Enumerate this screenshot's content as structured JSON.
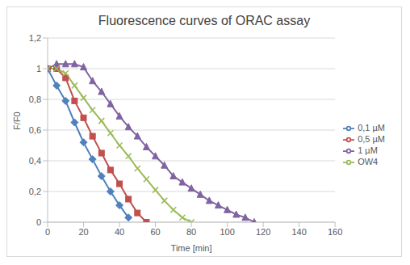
{
  "chart_data": {
    "type": "line",
    "title": "Fluorescence curves of ORAC assay",
    "x_label": "Time [min]",
    "y_label": "F/F0",
    "x": [
      0,
      5,
      10,
      15,
      20,
      25,
      30,
      35,
      40,
      45,
      50,
      55,
      60,
      65,
      70,
      75,
      80,
      85,
      90,
      95,
      100,
      105,
      110,
      115
    ],
    "series": [
      {
        "name": "0,1 µM",
        "color": "#4f81bd",
        "marker": "diamond",
        "values": [
          1,
          0.89,
          0.79,
          0.65,
          0.52,
          0.41,
          0.3,
          0.2,
          0.11,
          0.03,
          null,
          null,
          null,
          null,
          null,
          null,
          null,
          null,
          null,
          null,
          null,
          null,
          null,
          null
        ]
      },
      {
        "name": "0,5 µM",
        "color": "#c0504d",
        "marker": "square",
        "values": [
          1,
          1.0,
          0.94,
          0.79,
          0.68,
          0.56,
          0.45,
          0.34,
          0.25,
          0.15,
          0.06,
          0.0,
          null,
          null,
          null,
          null,
          null,
          null,
          null,
          null,
          null,
          null,
          null,
          null
        ]
      },
      {
        "name": "1 µM",
        "color": "#8064a2",
        "marker": "triangle",
        "values": [
          1,
          1.03,
          1.03,
          1.03,
          1.01,
          0.92,
          0.85,
          0.77,
          0.69,
          0.62,
          0.56,
          0.49,
          0.43,
          0.37,
          0.3,
          0.26,
          0.22,
          0.18,
          0.14,
          0.11,
          0.08,
          0.05,
          0.03,
          0.0
        ]
      },
      {
        "name": "OW4",
        "color": "#9bbb59",
        "marker": "x",
        "values": [
          1,
          1.0,
          0.97,
          0.89,
          0.81,
          0.73,
          0.66,
          0.58,
          0.5,
          0.43,
          0.35,
          0.28,
          0.21,
          0.14,
          0.08,
          0.03,
          0.0,
          null,
          null,
          null,
          null,
          null,
          null,
          null
        ]
      }
    ],
    "xlim": [
      0,
      160
    ],
    "xticks": [
      0,
      20,
      40,
      60,
      80,
      100,
      120,
      140,
      160
    ],
    "ylim": [
      0,
      1.2
    ],
    "yticks": [
      0,
      {
        "value": 0.2,
        "label": "0,2"
      },
      {
        "value": 0.4,
        "label": "0,4"
      },
      {
        "value": 0.6,
        "label": "0,6"
      },
      {
        "value": 0.8,
        "label": "0,8"
      },
      1,
      {
        "value": 1.2,
        "label": "1,2"
      }
    ],
    "grid": true,
    "legend": "right"
  }
}
